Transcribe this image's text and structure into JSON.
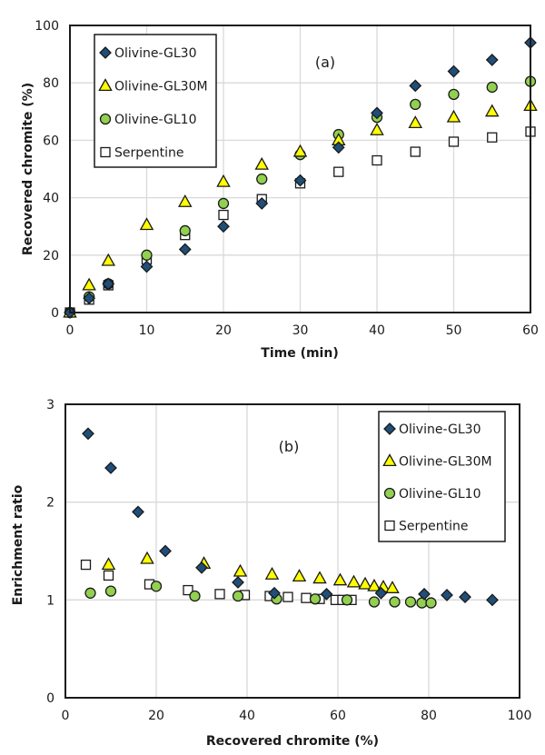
{
  "chart_data": [
    {
      "type": "scatter",
      "panel_label": "(a)",
      "title": "",
      "xlabel": "Time (min)",
      "ylabel": "Recovered chromite (%)",
      "xlim": [
        0,
        60
      ],
      "ylim": [
        0,
        100
      ],
      "xticks": [
        0,
        10,
        20,
        30,
        40,
        50,
        60
      ],
      "yticks": [
        0,
        20,
        40,
        60,
        80,
        100
      ],
      "grid": true,
      "legend_position": "top-left",
      "series": [
        {
          "name": "Olivine-GL30",
          "marker": "diamond",
          "color": "#1f4e79",
          "x": [
            0,
            2.5,
            5,
            10,
            15,
            20,
            25,
            30,
            35,
            40,
            45,
            50,
            55,
            60
          ],
          "y": [
            0,
            5,
            10,
            16,
            22,
            30,
            38,
            46,
            57.5,
            69.5,
            79,
            84,
            88,
            94
          ]
        },
        {
          "name": "Olivine-GL30M",
          "marker": "triangle",
          "color": "#ffff00",
          "x": [
            0,
            2.5,
            5,
            10,
            15,
            20,
            25,
            30,
            35,
            40,
            45,
            50,
            55,
            60
          ],
          "y": [
            0,
            9.5,
            18,
            30.5,
            38.5,
            45.5,
            51.5,
            56,
            60,
            63.5,
            66,
            68,
            70,
            72
          ]
        },
        {
          "name": "Olivine-GL10",
          "marker": "circle",
          "color": "#92d050",
          "x": [
            0,
            2.5,
            5,
            10,
            15,
            20,
            25,
            30,
            35,
            40,
            45,
            50,
            55,
            60
          ],
          "y": [
            0,
            5.5,
            10,
            20,
            28.5,
            38,
            46.5,
            55,
            62,
            68,
            72.5,
            76,
            78.5,
            80.5
          ]
        },
        {
          "name": "Serpentine",
          "marker": "square",
          "color": "#ffffff",
          "x": [
            0,
            2.5,
            5,
            10,
            15,
            20,
            25,
            30,
            35,
            40,
            45,
            50,
            55,
            60
          ],
          "y": [
            0,
            4.5,
            9.5,
            18.5,
            27,
            34,
            39.5,
            45,
            49,
            53,
            56,
            59.5,
            61,
            63
          ]
        }
      ]
    },
    {
      "type": "scatter",
      "panel_label": "(b)",
      "title": "",
      "xlabel": "Recovered chromite (%)",
      "ylabel": "Enrichment ratio",
      "xlim": [
        0,
        100
      ],
      "ylim": [
        0,
        3
      ],
      "xticks": [
        0,
        20,
        40,
        60,
        80,
        100
      ],
      "yticks": [
        0,
        1,
        2,
        3
      ],
      "grid": true,
      "legend_position": "top-right",
      "series": [
        {
          "name": "Olivine-GL30",
          "marker": "diamond",
          "color": "#1f4e79",
          "x": [
            5,
            10,
            16,
            22,
            30,
            38,
            46,
            57.5,
            69.5,
            79,
            84,
            88,
            94
          ],
          "y": [
            2.7,
            2.35,
            1.9,
            1.5,
            1.33,
            1.18,
            1.07,
            1.06,
            1.07,
            1.06,
            1.05,
            1.03,
            1.0
          ]
        },
        {
          "name": "Olivine-GL30M",
          "marker": "triangle",
          "color": "#ffff00",
          "x": [
            9.5,
            18,
            30.5,
            38.5,
            45.5,
            51.5,
            56,
            60.5,
            63.5,
            66,
            68,
            70,
            72
          ],
          "y": [
            1.36,
            1.42,
            1.37,
            1.29,
            1.26,
            1.24,
            1.22,
            1.2,
            1.18,
            1.16,
            1.14,
            1.13,
            1.12
          ]
        },
        {
          "name": "Olivine-GL10",
          "marker": "circle",
          "color": "#92d050",
          "x": [
            5.5,
            10,
            20,
            28.5,
            38,
            46.5,
            55,
            62,
            68,
            72.5,
            76,
            78.5,
            80.5
          ],
          "y": [
            1.07,
            1.09,
            1.14,
            1.04,
            1.04,
            1.01,
            1.01,
            1.0,
            0.98,
            0.98,
            0.98,
            0.97,
            0.97
          ]
        },
        {
          "name": "Serpentine",
          "marker": "square",
          "color": "#ffffff",
          "x": [
            4.5,
            9.5,
            18.5,
            27,
            34,
            39.5,
            45,
            49,
            53,
            56,
            59.5,
            61,
            63
          ],
          "y": [
            1.36,
            1.25,
            1.16,
            1.1,
            1.06,
            1.05,
            1.04,
            1.03,
            1.02,
            1.01,
            1.0,
            1.0,
            1.0
          ]
        }
      ]
    }
  ]
}
